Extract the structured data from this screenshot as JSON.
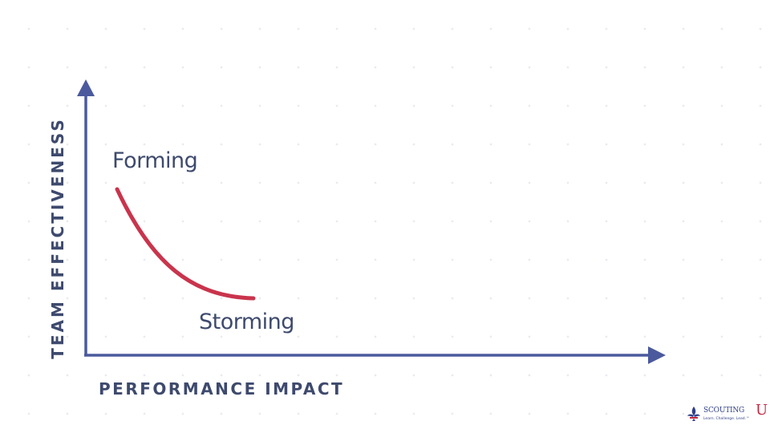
{
  "axes": {
    "y_title": "TEAM EFFECTIVENESS",
    "x_title": "PERFORMANCE IMPACT"
  },
  "stages": [
    {
      "label": "Forming"
    },
    {
      "label": "Storming"
    }
  ],
  "colors": {
    "axis": "#4a5a9c",
    "curve": "#c9344c",
    "text": "#3e4a6d",
    "background": "#ffffff"
  },
  "logo": {
    "name": "SCOUTING",
    "letter": "U",
    "tagline": "Learn. Challenge. Lead.™",
    "icon": "fleur-de-lis-icon"
  }
}
